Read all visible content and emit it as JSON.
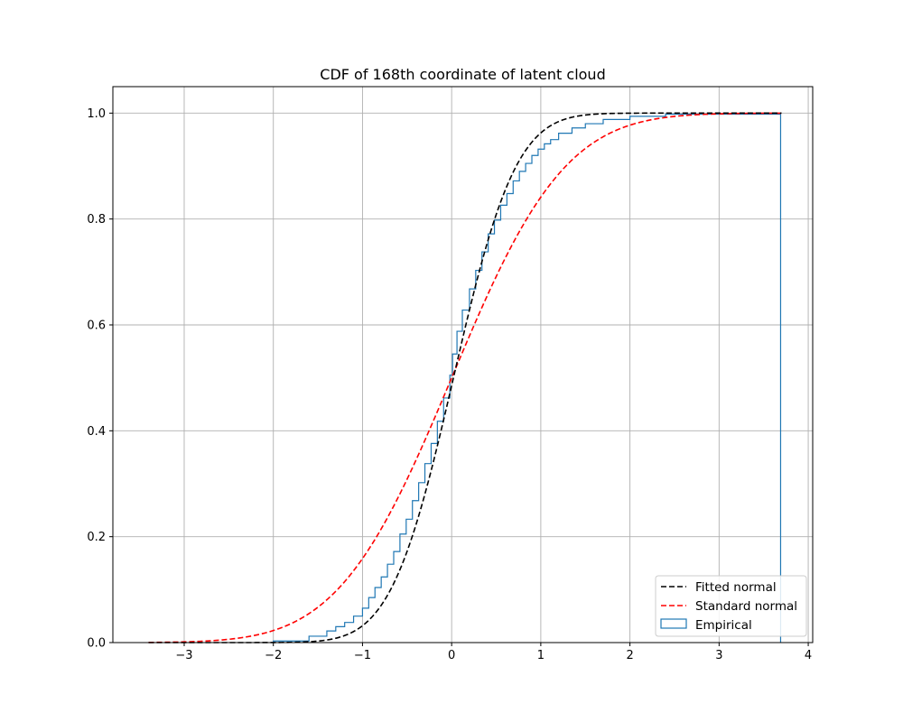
{
  "chart_data": {
    "type": "line",
    "title": "CDF of 168th coordinate of latent cloud",
    "xlabel": "",
    "ylabel": "",
    "xlim": [
      -3.8,
      4.05
    ],
    "ylim": [
      0.0,
      1.05
    ],
    "x_ticks": [
      -3,
      -2,
      -1,
      0,
      1,
      2,
      3,
      4
    ],
    "x_tick_labels": [
      "−3",
      "−2",
      "−1",
      "0",
      "1",
      "2",
      "3",
      "4"
    ],
    "y_ticks": [
      0.0,
      0.2,
      0.4,
      0.6,
      0.8,
      1.0
    ],
    "y_tick_labels": [
      "0.0",
      "0.2",
      "0.4",
      "0.6",
      "0.8",
      "1.0"
    ],
    "grid": true,
    "legend_position": "lower-right",
    "colors": {
      "fitted": "#000000",
      "standard": "#ff0000",
      "empirical": "#1f77b4"
    },
    "series": [
      {
        "name": "Fitted normal",
        "kind": "normal_cdf",
        "mean": 0.02,
        "std": 0.55,
        "x_range": [
          -3.4,
          3.7
        ],
        "line_style": "dashed"
      },
      {
        "name": "Standard normal",
        "kind": "normal_cdf",
        "mean": 0.0,
        "std": 1.0,
        "x_range": [
          -3.4,
          3.7
        ],
        "line_style": "dashed"
      },
      {
        "name": "Empirical",
        "kind": "step",
        "x": [
          -2.0,
          -1.6,
          -1.4,
          -1.3,
          -1.2,
          -1.1,
          -1.0,
          -0.93,
          -0.86,
          -0.79,
          -0.72,
          -0.65,
          -0.58,
          -0.51,
          -0.44,
          -0.37,
          -0.3,
          -0.23,
          -0.16,
          -0.09,
          -0.02,
          0.01,
          0.06,
          0.12,
          0.2,
          0.27,
          0.34,
          0.41,
          0.48,
          0.55,
          0.62,
          0.69,
          0.76,
          0.83,
          0.9,
          0.97,
          1.04,
          1.11,
          1.2,
          1.35,
          1.5,
          1.7,
          2.0,
          2.4,
          3.69
        ],
        "y": [
          0.003,
          0.012,
          0.022,
          0.03,
          0.038,
          0.05,
          0.065,
          0.085,
          0.104,
          0.124,
          0.148,
          0.172,
          0.205,
          0.233,
          0.268,
          0.302,
          0.338,
          0.376,
          0.418,
          0.462,
          0.505,
          0.545,
          0.588,
          0.628,
          0.668,
          0.703,
          0.738,
          0.772,
          0.798,
          0.826,
          0.848,
          0.872,
          0.89,
          0.905,
          0.92,
          0.932,
          0.942,
          0.95,
          0.962,
          0.972,
          0.98,
          0.988,
          0.994,
          0.998,
          1.0
        ]
      }
    ]
  }
}
